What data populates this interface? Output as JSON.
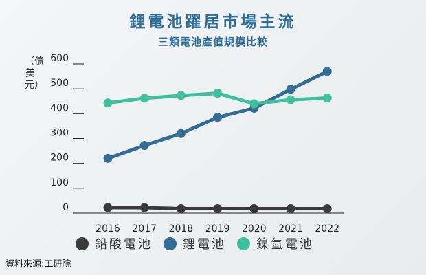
{
  "title": "鋰電池躍居市場主流",
  "subtitle": "三類電池產值規模比較",
  "ylabel": "（億美元）",
  "source": "資料來源:工研院",
  "colors": {
    "lead_acid": "#3a3a3a",
    "lithium": "#336d93",
    "nimh": "#3fbf9b",
    "grid": "#222222",
    "title": "#2f6e99"
  },
  "chart_data": {
    "type": "line",
    "title": "鋰電池躍居市場主流",
    "subtitle": "三類電池產值規模比較",
    "ylabel": "（億美元）",
    "xlabel": "",
    "x": [
      "2016",
      "2017",
      "2018",
      "2019",
      "2020",
      "2021",
      "2022"
    ],
    "yticks": [
      0,
      100,
      200,
      300,
      400,
      500,
      600
    ],
    "ylim": [
      0,
      600
    ],
    "grid": "y-axis tick stubs only",
    "legend_position": "bottom",
    "series": [
      {
        "name": "鉛酸電池",
        "color": "#3a3a3a",
        "values": [
          22,
          22,
          18,
          18,
          18,
          18,
          18
        ]
      },
      {
        "name": "鋰電池",
        "color": "#336d93",
        "values": [
          220,
          272,
          320,
          385,
          422,
          498,
          570
        ]
      },
      {
        "name": "鎳氫電池",
        "color": "#3fbf9b",
        "values": [
          443,
          462,
          473,
          482,
          440,
          456,
          463
        ]
      }
    ]
  }
}
